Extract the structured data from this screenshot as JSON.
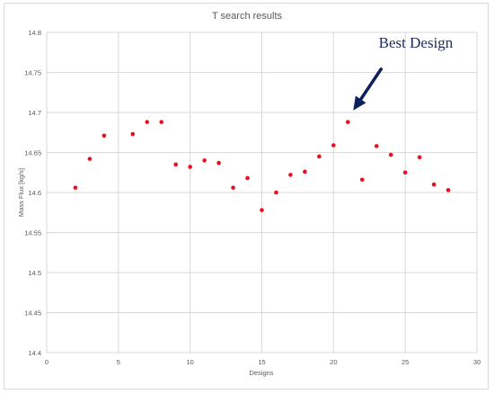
{
  "chart_data": {
    "type": "scatter",
    "title": "T search results",
    "xlabel": "Designs",
    "ylabel": "Mass Flux [kg/s]",
    "xlim": [
      0,
      30
    ],
    "ylim": [
      14.4,
      14.8
    ],
    "x_ticks": [
      "0",
      "5",
      "10",
      "15",
      "20",
      "25",
      "30"
    ],
    "y_ticks": [
      "14.4",
      "14.45",
      "14.5",
      "14.55",
      "14.6",
      "14.65",
      "14.7",
      "14.75",
      "14.8"
    ],
    "grid": "vertical-and-horizontal",
    "point_color": "#e8101e",
    "annotation": {
      "text": "Best Design",
      "target_x": 21,
      "target_y": 14.689,
      "arrow_color": "#0f1f5c"
    },
    "series": [
      {
        "x": [
          2,
          3,
          4,
          6,
          7,
          8,
          9,
          10,
          11,
          12,
          13,
          14,
          15,
          16,
          17,
          18,
          19,
          20,
          21,
          22,
          23,
          24,
          25,
          26,
          27,
          28
        ],
        "y": [
          14.606,
          14.642,
          14.671,
          14.673,
          14.688,
          14.688,
          14.635,
          14.632,
          14.64,
          14.637,
          14.606,
          14.618,
          14.578,
          14.6,
          14.622,
          14.626,
          14.645,
          14.659,
          14.688,
          14.616,
          14.658,
          14.647,
          14.625,
          14.644,
          14.61,
          14.603
        ]
      }
    ]
  }
}
